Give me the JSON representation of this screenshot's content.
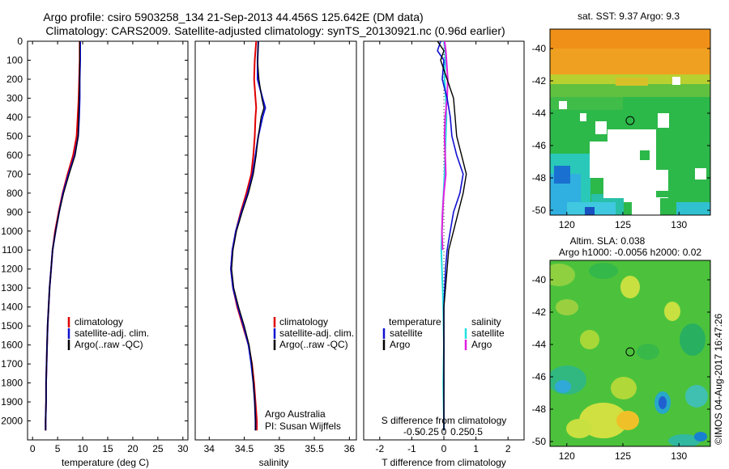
{
  "header": {
    "line1": "Argo profile: csiro 5903258_134 21-Sep-2013 44.456S 125.642E (DM data)",
    "line2": "Climatology: CARS2009. Satellite-adjusted climatology: synTS_20130921.nc (0.96d earlier)"
  },
  "colors": {
    "climatology": "#e00000",
    "satellite": "#1010d0",
    "argo": "#000000",
    "sal_sat": "#20e0e0",
    "sal_argo": "#e020e0"
  },
  "chart_data": [
    {
      "type": "line",
      "title": "",
      "xlabel": "temperature (deg C)",
      "ylabel": "",
      "xlim": [
        -1,
        31
      ],
      "ylim": [
        2100,
        0
      ],
      "xticks": [
        0,
        5,
        10,
        15,
        20,
        25,
        30
      ],
      "yticks": [
        0,
        100,
        200,
        300,
        400,
        500,
        600,
        700,
        800,
        900,
        1000,
        1100,
        1200,
        1300,
        1400,
        1500,
        1600,
        1700,
        1800,
        1900,
        2000
      ],
      "legend": [
        "climatology",
        "satellite-adj. clim.",
        "Argo(..raw -QC)"
      ],
      "series": [
        {
          "name": "climatology",
          "depth": [
            0,
            100,
            200,
            300,
            400,
            500,
            600,
            700,
            800,
            900,
            1000,
            1100,
            1200,
            1300,
            1400,
            1500,
            1600,
            1700,
            1800,
            1900,
            2000,
            2050
          ],
          "values": [
            9.4,
            9.4,
            9.3,
            9.2,
            9.0,
            8.8,
            8.1,
            7.0,
            6.0,
            5.2,
            4.5,
            4.0,
            3.7,
            3.4,
            3.2,
            3.0,
            2.9,
            2.8,
            2.7,
            2.7,
            2.6,
            2.6
          ]
        },
        {
          "name": "satellite-adj. clim.",
          "depth": [
            0,
            100,
            200,
            300,
            400,
            500,
            600,
            700,
            800,
            900,
            1000,
            1100,
            1200,
            1300,
            1400,
            1500,
            1600,
            1700,
            1800,
            1900,
            2000,
            2050
          ],
          "values": [
            9.5,
            9.5,
            9.4,
            9.4,
            9.3,
            9.1,
            8.4,
            7.2,
            6.1,
            5.3,
            4.6,
            4.0,
            3.7,
            3.4,
            3.2,
            3.0,
            2.9,
            2.8,
            2.7,
            2.7,
            2.6,
            2.6
          ]
        },
        {
          "name": "Argo(..raw -QC)",
          "depth": [
            0,
            100,
            200,
            300,
            400,
            500,
            600,
            700,
            800,
            900,
            1000,
            1100,
            1200,
            1300,
            1400,
            1500,
            1600,
            1700,
            1800,
            1900,
            2000,
            2050
          ],
          "values": [
            9.4,
            9.4,
            9.4,
            9.3,
            9.2,
            9.1,
            8.5,
            7.3,
            6.2,
            5.3,
            4.6,
            4.0,
            3.7,
            3.4,
            3.2,
            3.0,
            2.9,
            2.8,
            2.7,
            2.7,
            2.6,
            2.6
          ]
        }
      ]
    },
    {
      "type": "line",
      "xlabel": "salinity",
      "xlim": [
        33.8,
        36.1
      ],
      "ylim": [
        2100,
        0
      ],
      "xticks": [
        34,
        34.5,
        35,
        35.5,
        36
      ],
      "legend": [
        "climatology",
        "satellite-adj. clim.",
        "Argo(..raw -QC)"
      ],
      "annotation": [
        "Argo Australia",
        "PI: Susan Wijffels"
      ],
      "series": [
        {
          "name": "climatology",
          "depth": [
            0,
            100,
            200,
            300,
            350,
            400,
            500,
            600,
            700,
            800,
            900,
            1000,
            1100,
            1200,
            1300,
            1400,
            1500,
            1600,
            1700,
            1800,
            1900,
            2000,
            2050
          ],
          "values": [
            34.67,
            34.65,
            34.64,
            34.66,
            34.67,
            34.66,
            34.65,
            34.63,
            34.6,
            34.53,
            34.45,
            34.38,
            34.33,
            34.31,
            34.34,
            34.4,
            34.48,
            34.56,
            34.61,
            34.64,
            34.66,
            34.68,
            34.68
          ]
        },
        {
          "name": "satellite-adj. clim.",
          "depth": [
            0,
            100,
            200,
            300,
            350,
            400,
            500,
            600,
            700,
            800,
            900,
            1000,
            1100,
            1200,
            1300,
            1400,
            1500,
            1600,
            1700,
            1800,
            1900,
            2000,
            2050
          ],
          "values": [
            34.7,
            34.69,
            34.69,
            34.76,
            34.8,
            34.76,
            34.7,
            34.66,
            34.62,
            34.55,
            34.46,
            34.38,
            34.33,
            34.31,
            34.34,
            34.41,
            34.49,
            34.56,
            34.6,
            34.63,
            34.65,
            34.66,
            34.66
          ]
        },
        {
          "name": "Argo(..raw -QC)",
          "depth": [
            0,
            100,
            200,
            300,
            350,
            400,
            500,
            600,
            700,
            800,
            900,
            1000,
            1100,
            1200,
            1300,
            1400,
            1500,
            1600,
            1700,
            1800,
            1900,
            2000,
            2050
          ],
          "values": [
            34.7,
            34.69,
            34.71,
            34.75,
            34.78,
            34.74,
            34.7,
            34.67,
            34.63,
            34.56,
            34.47,
            34.39,
            34.34,
            34.32,
            34.35,
            34.42,
            34.5,
            34.57,
            34.61,
            34.63,
            34.65,
            34.66,
            34.66
          ]
        }
      ]
    },
    {
      "type": "line",
      "xlabel": "T difference from climatology",
      "xlabel2": "S difference from climatology",
      "xlim": [
        -2.5,
        2.5
      ],
      "ylim": [
        2100,
        0
      ],
      "xticks": [
        -2,
        -1,
        0,
        1,
        2
      ],
      "xticks2": [
        "-0.5",
        "-0.25",
        "0",
        "0.25",
        "0.5"
      ],
      "legend_temperature": {
        "title": "temperature",
        "items": [
          "satellite",
          "Argo"
        ]
      },
      "legend_salinity": {
        "title": "salinity",
        "items": [
          "satellite",
          "Argo"
        ]
      },
      "series": [
        {
          "name": "T satellite",
          "depth": [
            0,
            50,
            100,
            200,
            300,
            400,
            500,
            600,
            700,
            800,
            900,
            1000,
            1100,
            1200,
            1400,
            1600,
            1800,
            2000,
            2050
          ],
          "values": [
            -0.1,
            -0.2,
            0.0,
            -0.05,
            0.1,
            0.2,
            0.25,
            0.4,
            0.6,
            0.5,
            0.3,
            0.2,
            0.1,
            0.05,
            0.0,
            0.0,
            0.0,
            0.0,
            0.0
          ]
        },
        {
          "name": "T Argo",
          "depth": [
            0,
            50,
            100,
            200,
            300,
            400,
            500,
            600,
            700,
            800,
            900,
            1000,
            1100,
            1200,
            1300,
            1400,
            1600,
            1800,
            2000,
            2050
          ],
          "values": [
            -0.2,
            0.0,
            -0.1,
            0.1,
            0.3,
            0.35,
            0.4,
            0.55,
            0.7,
            0.6,
            0.45,
            0.3,
            0.15,
            0.1,
            0.05,
            0.0,
            0.0,
            0.0,
            0.0,
            0.0
          ]
        },
        {
          "name": "S satellite",
          "depth": [
            0,
            50,
            100,
            200,
            300,
            400,
            500,
            700,
            900,
            1000,
            1100,
            1200,
            1300,
            1400,
            1600,
            1800,
            2000,
            2050
          ],
          "values": [
            0.0,
            0.02,
            0.02,
            0.01,
            0.03,
            0.04,
            0.03,
            0.01,
            -0.02,
            -0.03,
            -0.04,
            -0.03,
            -0.02,
            -0.01,
            0.0,
            -0.01,
            0.0,
            0.0
          ]
        },
        {
          "name": "S Argo",
          "depth": [
            0,
            50,
            100,
            200,
            300,
            400,
            500,
            600,
            700,
            800,
            900,
            1000,
            1100
          ],
          "values": [
            0.01,
            0.03,
            0.04,
            0.06,
            0.05,
            0.02,
            0.01,
            0.02,
            0.03,
            0.0,
            -0.02,
            -0.03,
            -0.02
          ]
        }
      ]
    },
    {
      "type": "heatmap",
      "title": "sat. SST: 9.37 Argo: 9.3",
      "xticks": [
        120,
        125,
        130
      ],
      "yticks": [
        -40,
        -42,
        -44,
        -46,
        -48,
        -50
      ],
      "xlim": [
        118.5,
        132.8
      ],
      "ylim": [
        -50.3,
        -38.8
      ],
      "marker": {
        "lon": 125.642,
        "lat": -44.456
      }
    },
    {
      "type": "heatmap",
      "title": "Altim. SLA: 0.038",
      "subtitle": "Argo h1000: -0.0056 h2000: 0.02",
      "xticks": [
        120,
        125,
        130
      ],
      "yticks": [
        -40,
        -42,
        -44,
        -46,
        -48,
        -50
      ],
      "xlim": [
        118.5,
        132.8
      ],
      "ylim": [
        -50.3,
        -38.8
      ],
      "marker": {
        "lon": 125.642,
        "lat": -44.456
      }
    }
  ],
  "side_label": "©IMOS 04-Aug-2017 16:47:26"
}
